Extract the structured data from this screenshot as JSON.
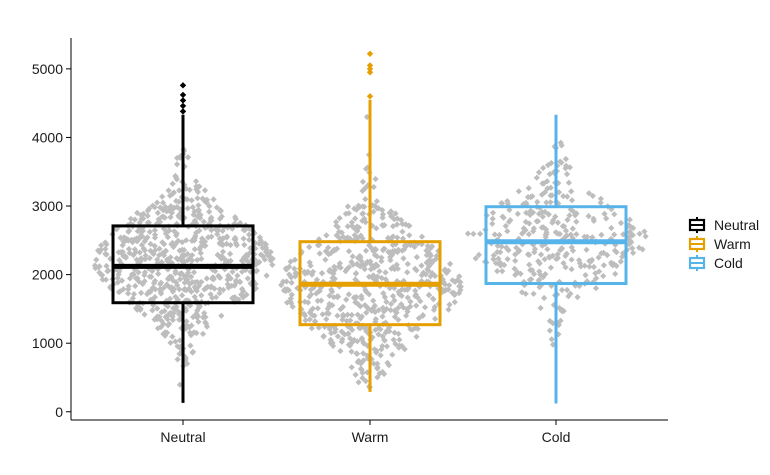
{
  "chart_data": {
    "type": "boxplot",
    "title": "",
    "xlabel": "",
    "ylabel": "",
    "ylim": [
      -120,
      5450
    ],
    "y_ticks": [
      0,
      1000,
      2000,
      3000,
      4000,
      5000
    ],
    "categories": [
      "Neutral",
      "Warm",
      "Cold"
    ],
    "jitter_color": "#bdbdbd",
    "grid": false,
    "legend_position": "right",
    "series": [
      {
        "name": "Neutral",
        "color": "#000000",
        "min": 130,
        "q1": 1590,
        "median": 2120,
        "q3": 2710,
        "max": 4330,
        "outliers": [
          4380,
          4460,
          4540,
          4620,
          4760
        ],
        "n_points": 700,
        "violin_center": 2200,
        "violin_spread": 1900
      },
      {
        "name": "Warm",
        "color": "#e69f00",
        "min": 290,
        "q1": 1270,
        "median": 1860,
        "q3": 2480,
        "max": 4550,
        "outliers": [
          4600,
          4950,
          5000,
          5050,
          5220
        ],
        "n_points": 600,
        "violin_center": 1850,
        "violin_spread": 2100
      },
      {
        "name": "Cold",
        "color": "#56b4e9",
        "min": 120,
        "q1": 1870,
        "median": 2480,
        "q3": 2990,
        "max": 4330,
        "outliers": [],
        "n_points": 330,
        "violin_center": 2500,
        "violin_spread": 1700
      }
    ]
  }
}
